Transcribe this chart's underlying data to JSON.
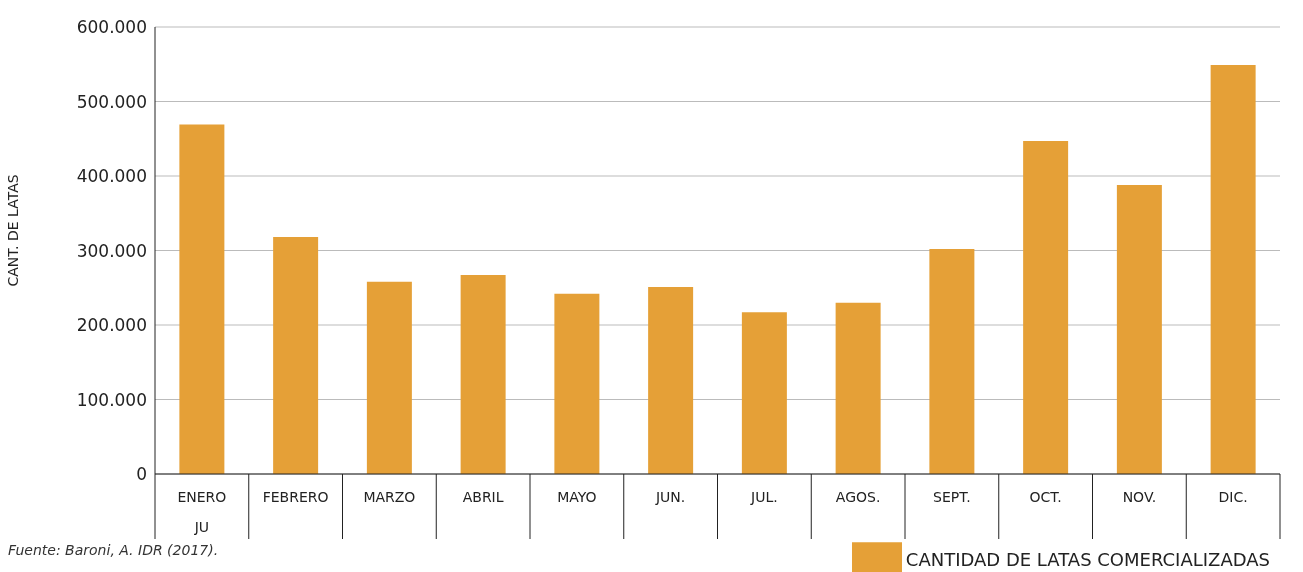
{
  "chart_data": {
    "type": "bar",
    "ylabel": "CANT. DE LATAS",
    "categories": [
      "ENERO",
      "FEBRERO",
      "MARZO",
      "ABRIL",
      "MAYO",
      "JUN.",
      "JUL.",
      "AGOS.",
      "SEPT.",
      "OCT.",
      "NOV.",
      "DIC."
    ],
    "series": [
      {
        "name": "CANTIDAD DE LATAS COMERCIALIZADAS",
        "color": "#e5a037",
        "values": [
          469000,
          318000,
          258000,
          267000,
          242000,
          251000,
          217000,
          230000,
          302000,
          447000,
          388000,
          549000
        ]
      }
    ],
    "ylim": [
      0,
      600000
    ],
    "yticks": [
      {
        "value": 0,
        "label": "0"
      },
      {
        "value": 100000,
        "label": "100.000"
      },
      {
        "value": 200000,
        "label": "200.000"
      },
      {
        "value": 300000,
        "label": "300.000"
      },
      {
        "value": 400000,
        "label": "400.000"
      },
      {
        "value": 500000,
        "label": "500.000"
      },
      {
        "value": 600000,
        "label": "600.000"
      }
    ],
    "grid": "y",
    "legend": "bottom right",
    "annotations": [
      "JU",
      "Fuente: Baroni, A. IDR (2017)."
    ]
  }
}
